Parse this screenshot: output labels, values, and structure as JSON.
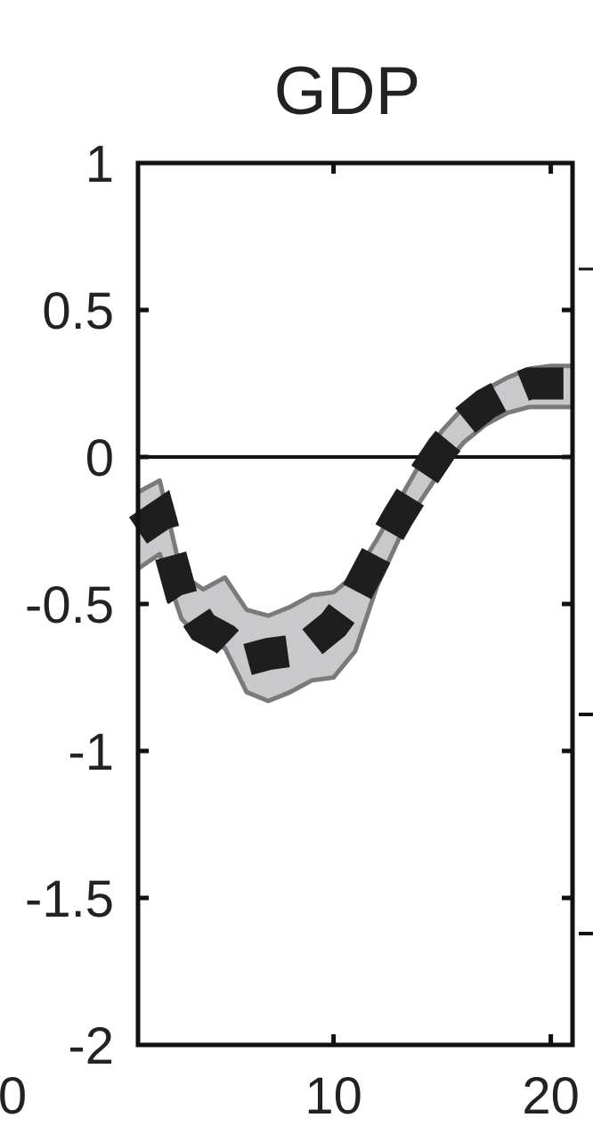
{
  "chart_data": {
    "type": "line",
    "title": "GDP",
    "xlabel": "",
    "ylabel": "",
    "xlim": [
      1,
      21
    ],
    "ylim": [
      -2,
      1
    ],
    "x_ticks": [
      10,
      20
    ],
    "x_tick_labels": [
      "10",
      "20"
    ],
    "partial_x_tick_label": "0",
    "y_ticks": [
      1,
      0.5,
      0,
      -0.5,
      -1,
      -1.5,
      -2
    ],
    "y_tick_labels": [
      "1",
      "0.5",
      "0",
      "-0.5",
      "-1",
      "-1.5",
      "-2"
    ],
    "zero_line": 0,
    "grid": false,
    "series": [
      {
        "style": "dashed",
        "color": "#1e1e1e",
        "x": [
          1,
          2,
          3,
          4,
          5,
          6,
          7,
          8,
          9,
          10,
          11,
          12,
          13,
          14,
          15,
          16,
          17,
          18,
          19,
          20,
          21
        ],
        "values": [
          -0.25,
          -0.2,
          -0.47,
          -0.58,
          -0.62,
          -0.69,
          -0.67,
          -0.66,
          -0.63,
          -0.57,
          -0.47,
          -0.33,
          -0.2,
          -0.08,
          0.03,
          0.12,
          0.18,
          0.22,
          0.25,
          0.25,
          0.25
        ]
      }
    ],
    "band": {
      "color": "#c9c9cb",
      "edge_color": "#7a7a7a",
      "x": [
        1,
        2,
        3,
        4,
        5,
        6,
        7,
        8,
        9,
        10,
        11,
        12,
        13,
        14,
        15,
        16,
        17,
        18,
        19,
        20,
        21
      ],
      "upper": [
        -0.12,
        -0.08,
        -0.4,
        -0.45,
        -0.41,
        -0.52,
        -0.54,
        -0.51,
        -0.47,
        -0.46,
        -0.4,
        -0.28,
        -0.15,
        -0.02,
        0.09,
        0.17,
        0.23,
        0.27,
        0.3,
        0.31,
        0.31
      ],
      "lower": [
        -0.38,
        -0.33,
        -0.55,
        -0.63,
        -0.65,
        -0.8,
        -0.83,
        -0.8,
        -0.76,
        -0.75,
        -0.66,
        -0.44,
        -0.28,
        -0.15,
        -0.04,
        0.05,
        0.11,
        0.15,
        0.17,
        0.17,
        0.17
      ]
    }
  }
}
